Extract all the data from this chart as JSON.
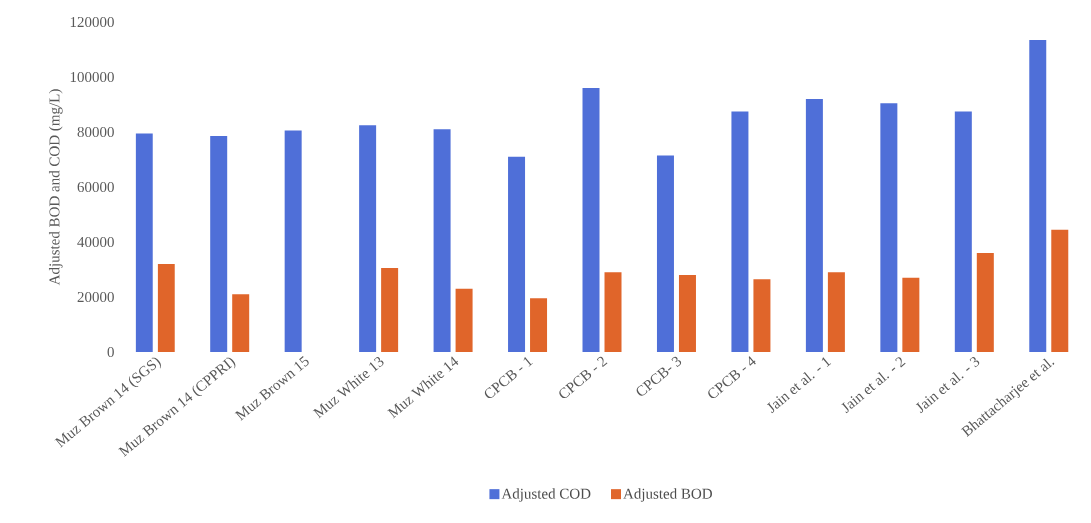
{
  "chart_data": {
    "type": "bar",
    "ylabel": "Adjusted BOD and COD (mg/L)",
    "categories": [
      "Muz Brown 14 (SGS)",
      "Muz Brown 14 (CPPRI)",
      "Muz Brown 15",
      "Muz White 13",
      "Muz White 14",
      "CPCB - 1",
      "CPCB - 2",
      "CPCB- 3",
      "CPCB - 4",
      "Jain et al. - 1",
      "Jain et al. - 2",
      "Jain et al. - 3",
      "Bhattacharjee et al."
    ],
    "series": [
      {
        "name": "Adjusted COD",
        "color": "#4f6fd8",
        "values": [
          79500,
          78500,
          80500,
          82500,
          81000,
          71000,
          96000,
          71500,
          87500,
          92000,
          90500,
          87500,
          113500
        ]
      },
      {
        "name": "Adjusted BOD",
        "color": "#e0652a",
        "values": [
          32000,
          21000,
          null,
          30500,
          23000,
          19500,
          29000,
          28000,
          26500,
          29000,
          27000,
          36000,
          44500
        ]
      }
    ],
    "ylim": [
      0,
      120000
    ],
    "yticks": [
      0,
      20000,
      40000,
      60000,
      80000,
      100000,
      120000
    ],
    "legend": "bottom"
  }
}
